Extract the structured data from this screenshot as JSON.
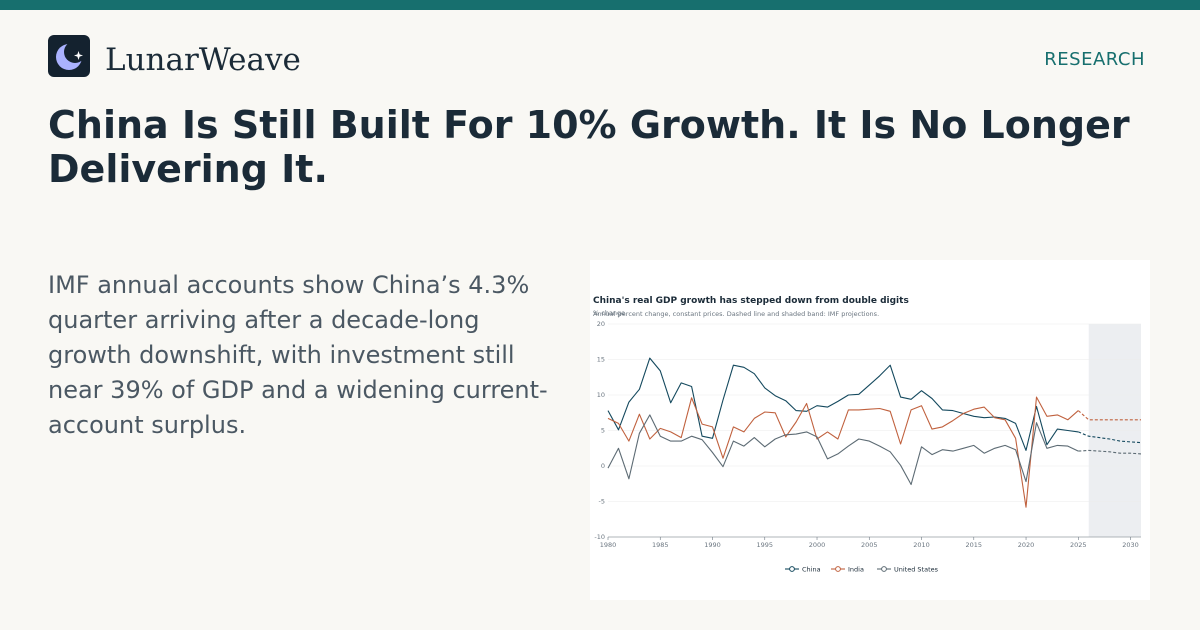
{
  "brand": {
    "name": "LunarWeave",
    "logo_icon": "crescent-moon-star-icon"
  },
  "header": {
    "section": "RESEARCH"
  },
  "headline": "China Is Still Built For 10% Growth. It Is No Longer Delivering It.",
  "summary": "IMF annual accounts show China’s 4.3% quarter arriving after a decade-long growth downshift, with investment still near 39% of GDP and a widening current-account surplus.",
  "colors": {
    "accent": "#176f6e",
    "china": "#14495e",
    "india": "#c0613e",
    "us": "#5d6b74",
    "projection_band": "#eceef1"
  },
  "chart_data": {
    "type": "line",
    "title": "China's real GDP growth has stepped down from double digits",
    "subtitle": "Annual percent change, constant prices. Dashed line and shaded band: IMF projections.",
    "ylabel": "% change",
    "xlim": [
      1980,
      2031
    ],
    "ylim": [
      -10,
      20
    ],
    "x_ticks": [
      1980,
      1985,
      1990,
      1995,
      2000,
      2005,
      2010,
      2015,
      2020,
      2025,
      2030
    ],
    "y_ticks": [
      -10,
      -5,
      0,
      5,
      10,
      15,
      20
    ],
    "projection_start": 2026,
    "grid": true,
    "legend_position": "bottom-center",
    "x": [
      1980,
      1981,
      1982,
      1983,
      1984,
      1985,
      1986,
      1987,
      1988,
      1989,
      1990,
      1991,
      1992,
      1993,
      1994,
      1995,
      1996,
      1997,
      1998,
      1999,
      2000,
      2001,
      2002,
      2003,
      2004,
      2005,
      2006,
      2007,
      2008,
      2009,
      2010,
      2011,
      2012,
      2013,
      2014,
      2015,
      2016,
      2017,
      2018,
      2019,
      2020,
      2021,
      2022,
      2023,
      2024,
      2025,
      2026,
      2027,
      2028,
      2029,
      2030,
      2031
    ],
    "series": [
      {
        "name": "China",
        "values": [
          7.8,
          5.1,
          9.0,
          10.8,
          15.2,
          13.4,
          8.9,
          11.7,
          11.2,
          4.2,
          3.9,
          9.3,
          14.2,
          13.9,
          13.0,
          11.0,
          9.9,
          9.2,
          7.8,
          7.7,
          8.5,
          8.3,
          9.1,
          10.0,
          10.1,
          11.4,
          12.7,
          14.2,
          9.7,
          9.4,
          10.6,
          9.5,
          7.9,
          7.8,
          7.4,
          7.0,
          6.8,
          6.9,
          6.7,
          6.0,
          2.2,
          8.4,
          3.0,
          5.2,
          5.0,
          4.8,
          4.2,
          4.0,
          3.8,
          3.5,
          3.4,
          3.3
        ],
        "projection_from": 2025
      },
      {
        "name": "India",
        "values": [
          6.7,
          6.0,
          3.5,
          7.3,
          3.8,
          5.3,
          4.8,
          4.0,
          9.6,
          5.9,
          5.5,
          1.1,
          5.5,
          4.8,
          6.7,
          7.6,
          7.5,
          4.1,
          6.2,
          8.8,
          3.8,
          4.8,
          3.8,
          7.9,
          7.9,
          8.0,
          8.1,
          7.7,
          3.1,
          7.9,
          8.5,
          5.2,
          5.5,
          6.4,
          7.4,
          8.0,
          8.3,
          6.8,
          6.5,
          3.9,
          -5.8,
          9.7,
          7.0,
          7.2,
          6.5,
          7.8,
          6.5,
          6.5,
          6.5,
          6.5,
          6.5,
          6.5
        ],
        "projection_from": 2025
      },
      {
        "name": "United States",
        "values": [
          -0.3,
          2.5,
          -1.8,
          4.6,
          7.2,
          4.2,
          3.5,
          3.5,
          4.2,
          3.7,
          1.9,
          -0.1,
          3.5,
          2.8,
          4.0,
          2.7,
          3.8,
          4.4,
          4.5,
          4.8,
          4.1,
          1.0,
          1.7,
          2.8,
          3.8,
          3.5,
          2.8,
          2.0,
          0.1,
          -2.6,
          2.7,
          1.6,
          2.3,
          2.1,
          2.5,
          2.9,
          1.8,
          2.5,
          2.9,
          2.3,
          -2.2,
          6.1,
          2.5,
          2.9,
          2.8,
          2.1,
          2.2,
          2.1,
          2.0,
          1.8,
          1.8,
          1.7
        ],
        "projection_from": 2025
      }
    ]
  }
}
